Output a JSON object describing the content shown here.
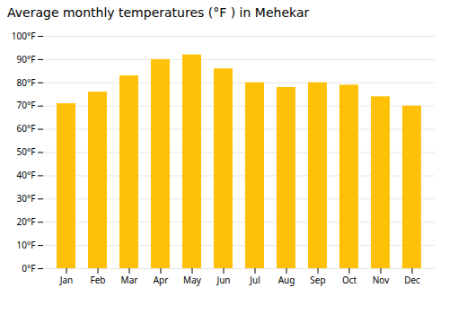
{
  "chart_data": {
    "type": "bar",
    "title": "Average monthly temperatures (°F ) in Mehekar",
    "categories": [
      "Jan",
      "Feb",
      "Mar",
      "Apr",
      "May",
      "Jun",
      "Jul",
      "Aug",
      "Sep",
      "Oct",
      "Nov",
      "Dec"
    ],
    "values": [
      71,
      76,
      83,
      90,
      92,
      86,
      80,
      78,
      80,
      79,
      74,
      70
    ],
    "color": "#FFC107",
    "ylim": [
      0,
      100
    ],
    "yticks": [
      {
        "value": 0,
        "label": "0°F"
      },
      {
        "value": 10,
        "label": "10°F"
      },
      {
        "value": 20,
        "label": "20°F"
      },
      {
        "value": 30,
        "label": "30°F"
      },
      {
        "value": 40,
        "label": "40°F"
      },
      {
        "value": 50,
        "label": "50°F"
      },
      {
        "value": 60,
        "label": "60°F"
      },
      {
        "value": 70,
        "label": "70°F"
      },
      {
        "value": 80,
        "label": "80°F"
      },
      {
        "value": 90,
        "label": "90°F"
      },
      {
        "value": 100,
        "label": "100°F"
      }
    ],
    "grid": true
  }
}
